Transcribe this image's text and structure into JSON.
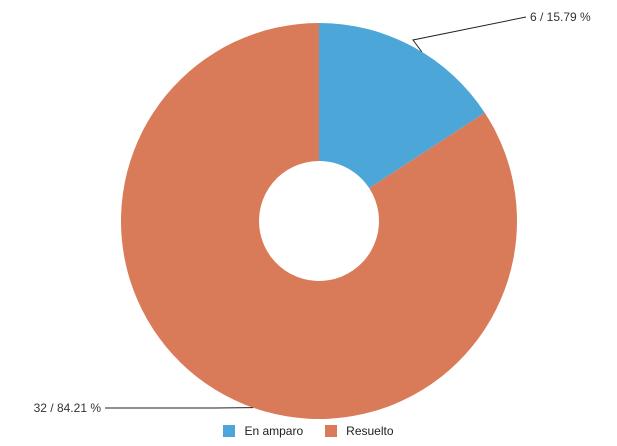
{
  "chart_data": {
    "type": "pie",
    "donut": true,
    "title": "",
    "legend_position": "bottom",
    "series": [
      {
        "name": "En amparo",
        "value": 6,
        "percent": 15.79,
        "label": "6 / 15.79 %",
        "color": "#4da6d8"
      },
      {
        "name": "Resuelto",
        "value": 32,
        "percent": 84.21,
        "label": "32 / 84.21 %",
        "color": "#d97b58"
      }
    ]
  }
}
